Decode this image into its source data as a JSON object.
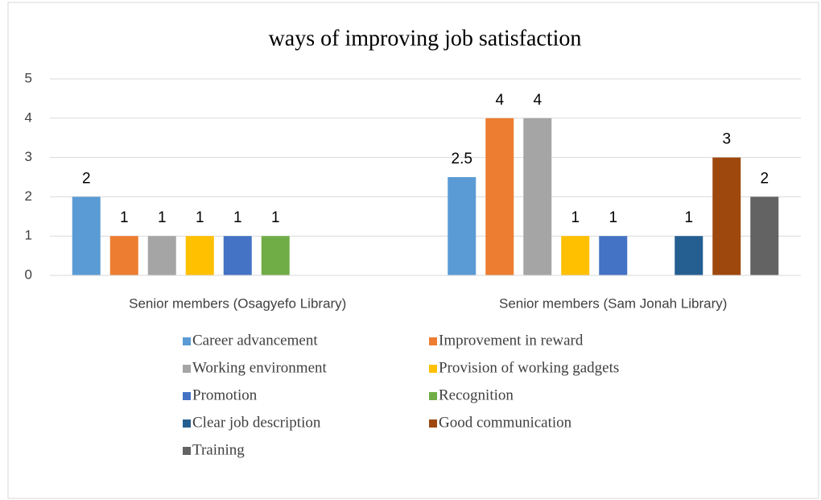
{
  "chart_data": {
    "type": "bar",
    "title": "ways of  improving job satisfaction",
    "categories": [
      "Senior members (Osagyefo Library)",
      "Senior members  (Sam Jonah Library)"
    ],
    "series": [
      {
        "name": "Career advancement",
        "color": "#5b9bd5",
        "values": [
          2,
          2.5
        ]
      },
      {
        "name": "Improvement in reward",
        "color": "#ed7d31",
        "values": [
          1,
          4
        ]
      },
      {
        "name": "Working environment",
        "color": "#a5a5a5",
        "values": [
          1,
          4
        ]
      },
      {
        "name": "Provision of working gadgets",
        "color": "#ffc000",
        "values": [
          1,
          1
        ]
      },
      {
        "name": "Promotion",
        "color": "#4472c4",
        "values": [
          1,
          1
        ]
      },
      {
        "name": "Recognition",
        "color": "#70ad47",
        "values": [
          1,
          null
        ]
      },
      {
        "name": "Clear job description",
        "color": "#255e91",
        "values": [
          null,
          1
        ]
      },
      {
        "name": "Good communication",
        "color": "#9e480e",
        "values": [
          null,
          3
        ]
      },
      {
        "name": "Training",
        "color": "#636363",
        "values": [
          null,
          2
        ]
      }
    ],
    "ylim": [
      0,
      5
    ],
    "yticks": [
      0,
      1,
      2,
      3,
      4,
      5
    ],
    "grid": true,
    "legend": "bottom"
  }
}
